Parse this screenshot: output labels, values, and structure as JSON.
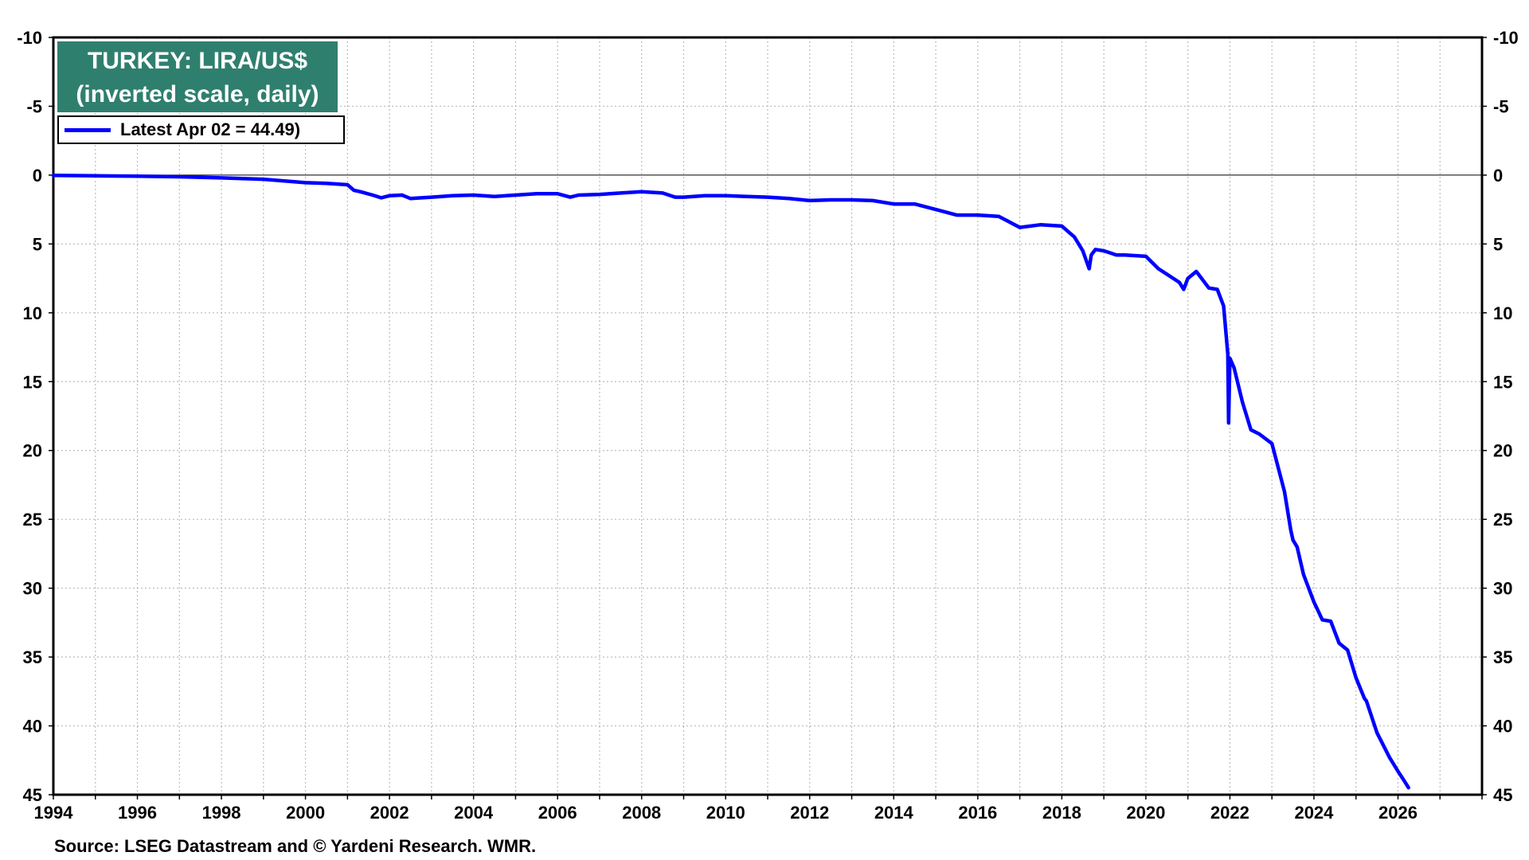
{
  "chart_data": {
    "type": "line",
    "title": "TURKEY: LIRA/US$",
    "subtitle": "(inverted scale, daily)",
    "legend": {
      "label": "Latest Apr 02 = 44.49)",
      "placement": "top-left"
    },
    "series_color": "#0000ff",
    "title_bg_color": "#2f7f6f",
    "y_inverted": true,
    "ylim": [
      -10,
      45
    ],
    "xlim": [
      1994,
      2028
    ],
    "x_ticks": [
      "1994",
      "1996",
      "1998",
      "2000",
      "2002",
      "2004",
      "2006",
      "2008",
      "2010",
      "2012",
      "2014",
      "2016",
      "2018",
      "2020",
      "2022",
      "2024",
      "2026"
    ],
    "y_ticks": [
      "-10",
      "-5",
      "0",
      "5",
      "10",
      "15",
      "20",
      "25",
      "30",
      "35",
      "40",
      "45"
    ],
    "grid": true,
    "zero_line": true,
    "series": [
      {
        "x": [
          1994.0,
          1995.0,
          1996.0,
          1997.0,
          1998.0,
          1999.0,
          2000.0,
          2000.5,
          2001.0,
          2001.15,
          2001.3,
          2001.6,
          2001.8,
          2002.0,
          2002.3,
          2002.5,
          2003.0,
          2003.5,
          2004.0,
          2004.5,
          2005.0,
          2005.5,
          2006.0,
          2006.3,
          2006.5,
          2007.0,
          2007.5,
          2008.0,
          2008.5,
          2008.8,
          2009.0,
          2009.5,
          2010.0,
          2010.5,
          2011.0,
          2011.5,
          2012.0,
          2012.5,
          2013.0,
          2013.5,
          2014.0,
          2014.5,
          2015.0,
          2015.5,
          2016.0,
          2016.5,
          2017.0,
          2017.5,
          2018.0,
          2018.3,
          2018.5,
          2018.65,
          2018.7,
          2018.8,
          2019.0,
          2019.3,
          2019.5,
          2020.0,
          2020.3,
          2020.5,
          2020.8,
          2020.9,
          2021.0,
          2021.2,
          2021.5,
          2021.7,
          2021.85,
          2021.95,
          2021.97,
          2022.0,
          2022.1,
          2022.3,
          2022.5,
          2022.7,
          2023.0,
          2023.3,
          2023.45,
          2023.5,
          2023.6,
          2023.75,
          2024.0,
          2024.2,
          2024.4,
          2024.6,
          2024.8,
          2025.0,
          2025.2,
          2025.25,
          2025.5,
          2025.8,
          2026.0,
          2026.15,
          2026.25
        ],
        "values": [
          0.02,
          0.05,
          0.08,
          0.12,
          0.2,
          0.3,
          0.55,
          0.6,
          0.7,
          1.1,
          1.2,
          1.45,
          1.65,
          1.5,
          1.45,
          1.7,
          1.6,
          1.5,
          1.45,
          1.55,
          1.45,
          1.35,
          1.35,
          1.6,
          1.45,
          1.4,
          1.3,
          1.2,
          1.3,
          1.6,
          1.6,
          1.5,
          1.5,
          1.55,
          1.6,
          1.7,
          1.85,
          1.8,
          1.8,
          1.85,
          2.1,
          2.1,
          2.5,
          2.9,
          2.9,
          3.0,
          3.8,
          3.6,
          3.7,
          4.5,
          5.5,
          6.8,
          5.8,
          5.4,
          5.5,
          5.8,
          5.8,
          5.9,
          6.8,
          7.2,
          7.8,
          8.3,
          7.5,
          7.0,
          8.2,
          8.3,
          9.5,
          13.0,
          18.0,
          13.3,
          14.0,
          16.5,
          18.5,
          18.8,
          19.5,
          23.0,
          25.8,
          26.5,
          27.0,
          29.0,
          31.0,
          32.3,
          32.4,
          34.0,
          34.5,
          36.5,
          38.0,
          38.2,
          40.5,
          42.3,
          43.3,
          44.0,
          44.49
        ]
      }
    ]
  },
  "source": "Source: LSEG Datastream and © Yardeni Research. WMR."
}
